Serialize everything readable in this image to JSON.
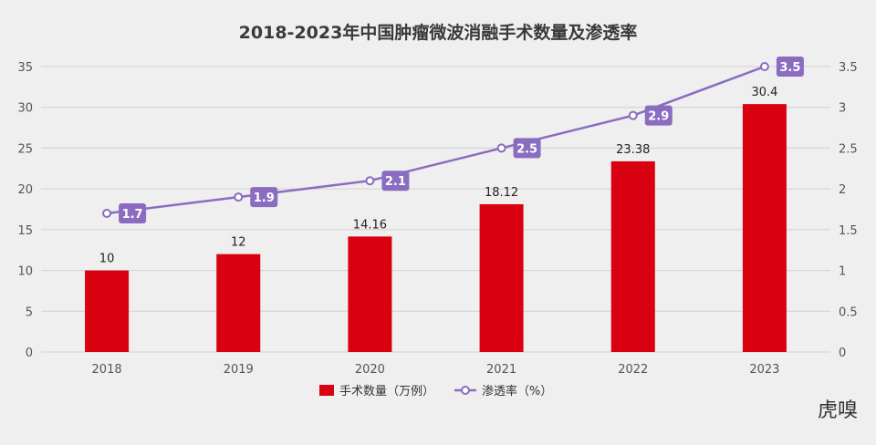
{
  "chart_data": {
    "type": "bar",
    "title": "2018-2023年中国肿瘤微波消融手术数量及渗透率",
    "categories": [
      "2018",
      "2019",
      "2020",
      "2021",
      "2022",
      "2023"
    ],
    "series": [
      {
        "name": "手术数量（万例）",
        "type": "bar",
        "axis": "left",
        "values": [
          10,
          12,
          14.16,
          18.12,
          23.38,
          30.4
        ],
        "labels": [
          "10",
          "12",
          "14.16",
          "18.12",
          "23.38",
          "30.4"
        ],
        "color": "#d9000f"
      },
      {
        "name": "渗透率（%）",
        "type": "line",
        "axis": "right",
        "values": [
          1.7,
          1.9,
          2.1,
          2.5,
          2.9,
          3.5
        ],
        "labels": [
          "1.7",
          "1.9",
          "2.1",
          "2.5",
          "2.9",
          "3.5"
        ],
        "color": "#8a6cc0"
      }
    ],
    "y_left": {
      "min": 0,
      "max": 35,
      "ticks": [
        "0",
        "5",
        "10",
        "15",
        "20",
        "25",
        "30",
        "35"
      ]
    },
    "y_right": {
      "min": 0,
      "max": 3.5,
      "ticks": [
        "0",
        "0.5",
        "1",
        "1.5",
        "2",
        "2.5",
        "3",
        "3.5"
      ]
    },
    "grid": true,
    "legend_position": "bottom-center"
  },
  "watermark": "虎嗅",
  "colors": {
    "background": "#efefef",
    "grid": "#d0d0d0",
    "bar": "#d9000f",
    "line": "#8a6cc0"
  }
}
